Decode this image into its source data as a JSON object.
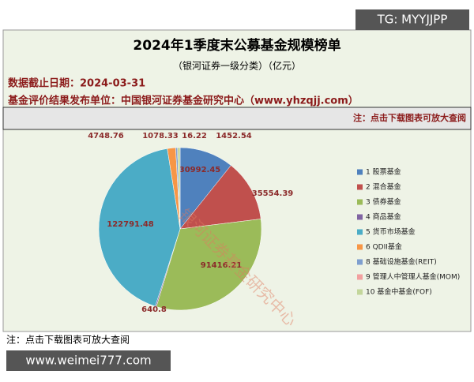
{
  "watermark_top": "TG: MYYJJPP",
  "watermark_bottom": "www.weimei777.com",
  "watermark_chart": "银河证券基金研究中心",
  "header": {
    "date_line": "数据截止日期：2024-03-31",
    "publisher_line": "基金评价结果发布单位：中国银河证券基金研究中心（www.yhzqjj.com）",
    "note_top": "注：点击下载图表可放大查阅"
  },
  "footer_note": "注：点击下载图表可放大查阅",
  "chart_data": {
    "type": "pie",
    "title": "2024年1季度末公募基金规模榜单",
    "subtitle": "（银河证券一级分类）（亿元）",
    "categories": [
      "1 股票基金",
      "2 混合基金",
      "3 债券基金",
      "4 商品基金",
      "5 货币市场基金",
      "6 QDII基金",
      "8 基础设施基金(REIT)",
      "9 管理人中管理人基金(MOM)",
      "10 基金中基金(FOF)"
    ],
    "values": [
      30992.45,
      35554.39,
      91416.21,
      640.8,
      122791.48,
      4748.76,
      1078.33,
      16.22,
      1452.54
    ],
    "colors": [
      "#4f81bd",
      "#c0504d",
      "#9bbb59",
      "#8064a2",
      "#4bacc6",
      "#f79646",
      "#7f9fcf",
      "#f2a0a0",
      "#c3d69b"
    ]
  }
}
